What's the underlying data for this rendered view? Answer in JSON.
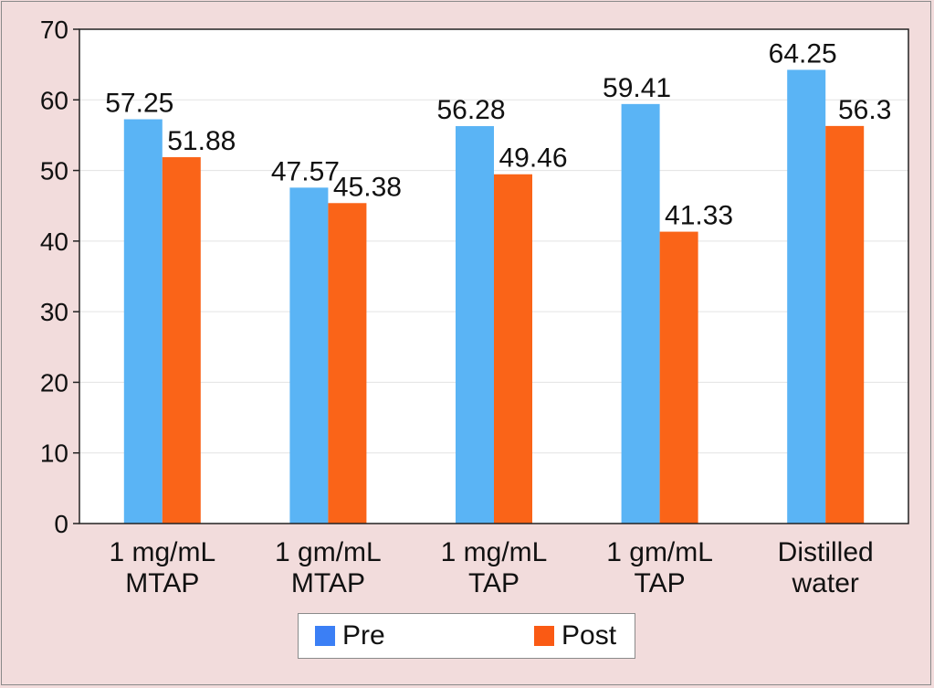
{
  "chart_data": {
    "type": "bar",
    "categories": [
      "1 mg/mL MTAP",
      "1 gm/mL MTAP",
      "1 mg/mL TAP",
      "1 gm/mL TAP",
      "Distilled water"
    ],
    "category_lines": [
      [
        "1 mg/mL",
        "MTAP"
      ],
      [
        "1 gm/mL",
        "MTAP"
      ],
      [
        "1 mg/mL",
        "TAP"
      ],
      [
        "1 gm/mL",
        "TAP"
      ],
      [
        "Distilled",
        "water"
      ]
    ],
    "series": [
      {
        "name": "Pre",
        "values": [
          57.25,
          47.57,
          56.28,
          59.41,
          64.25
        ],
        "labels": [
          "57.25",
          "47.57",
          "56.28",
          "59.41",
          "64.25"
        ],
        "color": "#5ab4f5"
      },
      {
        "name": "Post",
        "values": [
          51.88,
          45.38,
          49.46,
          41.33,
          56.3
        ],
        "labels": [
          "51.88",
          "45.38",
          "49.46",
          "41.33",
          "56.3"
        ],
        "color": "#fa6418"
      }
    ],
    "yticks": [
      "0",
      "10",
      "20",
      "30",
      "40",
      "50",
      "60",
      "70"
    ],
    "ylim": [
      0,
      70
    ],
    "title": "",
    "xlabel": "",
    "ylabel": "",
    "grid": true,
    "legend_position": "bottom"
  },
  "legend": {
    "pre_label": "Pre",
    "post_label": "Post",
    "pre_color": "#3b7ff5",
    "post_color": "#fa5a14"
  }
}
